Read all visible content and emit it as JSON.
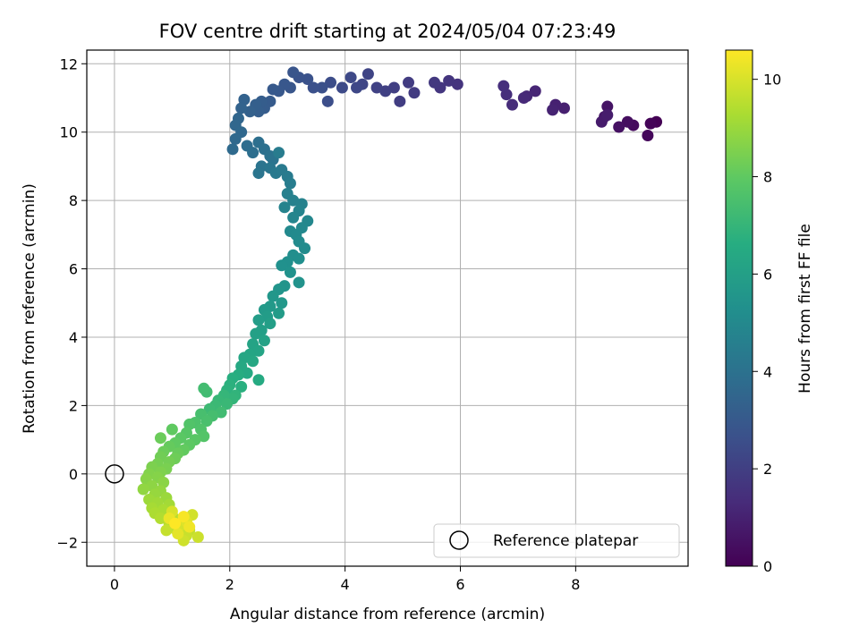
{
  "chart_data": {
    "type": "scatter",
    "title": "FOV centre drift starting at 2024/05/04 07:23:49",
    "xlabel": "Angular distance from reference (arcmin)",
    "ylabel": "Rotation from reference (arcmin)",
    "xlim": [
      -0.48,
      9.95
    ],
    "ylim": [
      -2.7,
      12.4
    ],
    "xticks": [
      0,
      2,
      4,
      6,
      8
    ],
    "yticks": [
      -2,
      0,
      2,
      4,
      6,
      8,
      10,
      12
    ],
    "grid": true,
    "colorbar": {
      "label": "Hours from first FF file",
      "range": [
        0,
        10.6
      ],
      "ticks": [
        0,
        2,
        4,
        6,
        8,
        10
      ],
      "colormap": "viridis",
      "stops": [
        "#440154",
        "#472c7a",
        "#3b518b",
        "#2c718e",
        "#21908d",
        "#27ad81",
        "#5cc863",
        "#aadc32",
        "#fde725"
      ]
    },
    "legend": {
      "placement": "lower-right",
      "entries": [
        "Reference platepar"
      ]
    },
    "reference_point": {
      "x": 0,
      "y": 0
    },
    "points_note": "points are [x arcmin, y arcmin, hours]",
    "points": [
      [
        9.4,
        10.3,
        0.0
      ],
      [
        9.3,
        10.25,
        0.1
      ],
      [
        9.25,
        9.9,
        0.2
      ],
      [
        9.0,
        10.2,
        0.3
      ],
      [
        8.9,
        10.3,
        0.4
      ],
      [
        8.75,
        10.15,
        0.5
      ],
      [
        8.55,
        10.75,
        0.6
      ],
      [
        8.5,
        10.45,
        0.7
      ],
      [
        8.45,
        10.3,
        0.8
      ],
      [
        8.55,
        10.5,
        0.85
      ],
      [
        7.8,
        10.7,
        0.95
      ],
      [
        7.65,
        10.8,
        1.0
      ],
      [
        7.6,
        10.65,
        1.05
      ],
      [
        7.3,
        11.2,
        1.15
      ],
      [
        7.15,
        11.05,
        1.2
      ],
      [
        7.1,
        11.0,
        1.25
      ],
      [
        6.9,
        10.8,
        1.35
      ],
      [
        6.8,
        11.1,
        1.4
      ],
      [
        6.75,
        11.35,
        1.45
      ],
      [
        5.95,
        11.4,
        1.6
      ],
      [
        5.8,
        11.5,
        1.65
      ],
      [
        5.65,
        11.3,
        1.7
      ],
      [
        5.55,
        11.45,
        1.75
      ],
      [
        5.2,
        11.15,
        1.85
      ],
      [
        5.1,
        11.45,
        1.9
      ],
      [
        4.95,
        10.9,
        1.95
      ],
      [
        4.85,
        11.3,
        2.0
      ],
      [
        4.7,
        11.2,
        2.05
      ],
      [
        4.55,
        11.3,
        2.1
      ],
      [
        4.4,
        11.7,
        2.2
      ],
      [
        4.3,
        11.4,
        2.25
      ],
      [
        4.2,
        11.3,
        2.3
      ],
      [
        4.1,
        11.6,
        2.35
      ],
      [
        3.95,
        11.3,
        2.4
      ],
      [
        3.75,
        11.45,
        2.5
      ],
      [
        3.7,
        10.9,
        2.55
      ],
      [
        3.6,
        11.3,
        2.6
      ],
      [
        3.45,
        11.3,
        2.65
      ],
      [
        3.35,
        11.55,
        2.7
      ],
      [
        3.2,
        11.6,
        2.75
      ],
      [
        3.1,
        11.75,
        2.8
      ],
      [
        3.05,
        11.3,
        2.85
      ],
      [
        2.95,
        11.4,
        2.9
      ],
      [
        2.85,
        11.2,
        2.95
      ],
      [
        2.75,
        11.25,
        3.0
      ],
      [
        2.7,
        10.9,
        3.05
      ],
      [
        2.6,
        10.7,
        3.1
      ],
      [
        2.55,
        10.9,
        3.15
      ],
      [
        2.5,
        10.6,
        3.2
      ],
      [
        2.45,
        10.8,
        3.25
      ],
      [
        2.35,
        10.6,
        3.3
      ],
      [
        2.25,
        10.95,
        3.35
      ],
      [
        2.2,
        10.7,
        3.4
      ],
      [
        2.15,
        10.4,
        3.5
      ],
      [
        2.1,
        10.2,
        3.55
      ],
      [
        2.2,
        10.0,
        3.6
      ],
      [
        2.1,
        9.8,
        3.65
      ],
      [
        2.05,
        9.5,
        3.7
      ],
      [
        2.3,
        9.6,
        3.8
      ],
      [
        2.4,
        9.4,
        3.85
      ],
      [
        2.5,
        9.7,
        3.9
      ],
      [
        2.6,
        9.5,
        3.95
      ],
      [
        2.7,
        9.3,
        4.0
      ],
      [
        2.75,
        9.2,
        4.05
      ],
      [
        2.55,
        9.0,
        4.1
      ],
      [
        2.5,
        8.8,
        4.15
      ],
      [
        2.7,
        8.95,
        4.2
      ],
      [
        2.8,
        8.8,
        4.3
      ],
      [
        2.9,
        8.9,
        4.35
      ],
      [
        3.0,
        8.7,
        4.4
      ],
      [
        2.85,
        9.4,
        4.45
      ],
      [
        3.05,
        8.5,
        4.5
      ],
      [
        3.0,
        8.2,
        4.6
      ],
      [
        3.1,
        8.0,
        4.65
      ],
      [
        3.25,
        7.9,
        4.7
      ],
      [
        2.95,
        7.8,
        4.75
      ],
      [
        3.2,
        7.7,
        4.8
      ],
      [
        3.1,
        7.5,
        4.85
      ],
      [
        3.35,
        7.4,
        4.9
      ],
      [
        3.25,
        7.2,
        4.95
      ],
      [
        3.05,
        7.1,
        5.0
      ],
      [
        3.15,
        7.0,
        5.05
      ],
      [
        3.2,
        6.8,
        5.1
      ],
      [
        3.3,
        6.6,
        5.15
      ],
      [
        3.1,
        6.4,
        5.2
      ],
      [
        3.2,
        6.3,
        5.25
      ],
      [
        3.0,
        6.2,
        5.3
      ],
      [
        2.9,
        6.1,
        5.35
      ],
      [
        3.05,
        5.9,
        5.4
      ],
      [
        3.2,
        5.6,
        5.45
      ],
      [
        2.95,
        5.5,
        5.5
      ],
      [
        2.85,
        5.4,
        5.55
      ],
      [
        2.75,
        5.2,
        5.6
      ],
      [
        2.9,
        5.0,
        5.65
      ],
      [
        2.7,
        4.9,
        5.7
      ],
      [
        2.6,
        4.8,
        5.75
      ],
      [
        2.85,
        4.7,
        5.8
      ],
      [
        2.65,
        4.6,
        5.85
      ],
      [
        2.5,
        4.5,
        5.9
      ],
      [
        2.7,
        4.4,
        5.95
      ],
      [
        2.55,
        4.2,
        6.0
      ],
      [
        2.45,
        4.1,
        6.05
      ],
      [
        2.6,
        3.9,
        6.1
      ],
      [
        2.4,
        3.8,
        6.15
      ],
      [
        2.5,
        3.6,
        6.2
      ],
      [
        2.35,
        3.5,
        6.25
      ],
      [
        2.25,
        3.4,
        6.3
      ],
      [
        2.4,
        3.3,
        6.35
      ],
      [
        2.2,
        3.15,
        6.4
      ],
      [
        2.3,
        2.95,
        6.45
      ],
      [
        2.5,
        2.75,
        6.5
      ],
      [
        2.15,
        2.9,
        6.6
      ],
      [
        2.05,
        2.8,
        6.65
      ],
      [
        2.2,
        2.55,
        6.7
      ],
      [
        2.0,
        2.6,
        6.75
      ],
      [
        1.95,
        2.45,
        6.8
      ],
      [
        2.1,
        2.3,
        6.9
      ],
      [
        2.05,
        2.2,
        6.95
      ],
      [
        1.9,
        2.3,
        7.0
      ],
      [
        1.8,
        2.15,
        7.05
      ],
      [
        1.95,
        2.05,
        7.1
      ],
      [
        1.75,
        2.0,
        7.15
      ],
      [
        1.65,
        1.9,
        7.2
      ],
      [
        1.85,
        1.8,
        7.3
      ],
      [
        1.55,
        2.5,
        7.35
      ],
      [
        1.7,
        1.7,
        7.4
      ],
      [
        1.5,
        1.75,
        7.45
      ],
      [
        1.6,
        1.55,
        7.5
      ],
      [
        1.4,
        1.5,
        7.6
      ],
      [
        1.5,
        1.3,
        7.65
      ],
      [
        1.3,
        1.45,
        7.7
      ],
      [
        1.55,
        1.1,
        7.75
      ],
      [
        1.25,
        1.2,
        7.8
      ],
      [
        1.4,
        1.0,
        7.85
      ],
      [
        1.15,
        1.05,
        7.9
      ],
      [
        1.3,
        0.85,
        7.95
      ],
      [
        1.05,
        0.9,
        8.0
      ],
      [
        1.2,
        0.7,
        8.05
      ],
      [
        0.95,
        0.8,
        8.1
      ],
      [
        1.1,
        0.6,
        8.15
      ],
      [
        0.85,
        0.65,
        8.2
      ],
      [
        1.05,
        0.45,
        8.25
      ],
      [
        0.8,
        0.5,
        8.3
      ],
      [
        0.95,
        0.35,
        8.35
      ],
      [
        0.75,
        0.3,
        8.4
      ],
      [
        0.9,
        0.15,
        8.45
      ],
      [
        0.65,
        0.2,
        8.5
      ],
      [
        0.8,
        0.05,
        8.55
      ],
      [
        0.6,
        0.0,
        8.6
      ],
      [
        0.75,
        -0.1,
        8.65
      ],
      [
        0.55,
        -0.15,
        8.7
      ],
      [
        0.85,
        -0.25,
        8.75
      ],
      [
        0.65,
        -0.35,
        8.8
      ],
      [
        0.5,
        -0.45,
        8.85
      ],
      [
        0.8,
        -0.5,
        8.9
      ],
      [
        0.7,
        -0.6,
        8.95
      ],
      [
        0.9,
        -0.7,
        9.0
      ],
      [
        0.6,
        -0.75,
        9.05
      ],
      [
        0.75,
        -0.85,
        9.1
      ],
      [
        0.95,
        -0.9,
        9.15
      ],
      [
        0.65,
        -1.0,
        9.2
      ],
      [
        0.85,
        -1.05,
        9.25
      ],
      [
        0.7,
        -1.15,
        9.3
      ],
      [
        1.0,
        -1.2,
        9.35
      ],
      [
        0.8,
        -1.3,
        9.4
      ],
      [
        1.1,
        -1.35,
        9.45
      ],
      [
        0.95,
        -1.45,
        9.5
      ],
      [
        1.2,
        -1.5,
        9.55
      ],
      [
        1.05,
        -1.6,
        9.6
      ],
      [
        1.3,
        -1.65,
        9.65
      ],
      [
        0.9,
        -1.65,
        9.7
      ],
      [
        1.25,
        -1.8,
        9.75
      ],
      [
        1.45,
        -1.85,
        9.8
      ],
      [
        1.2,
        -1.95,
        9.85
      ],
      [
        1.35,
        -1.2,
        9.9
      ],
      [
        1.15,
        -1.5,
        9.95
      ],
      [
        1.0,
        -1.1,
        10.0
      ],
      [
        1.25,
        -1.4,
        10.1
      ],
      [
        1.1,
        -1.75,
        10.2
      ],
      [
        0.95,
        -1.3,
        10.3
      ],
      [
        1.3,
        -1.55,
        10.4
      ],
      [
        1.2,
        -1.25,
        10.5
      ],
      [
        1.05,
        -1.45,
        10.6
      ],
      [
        0.8,
        1.05,
        8.2
      ],
      [
        1.0,
        1.3,
        8.0
      ],
      [
        1.6,
        2.4,
        7.3
      ]
    ]
  }
}
